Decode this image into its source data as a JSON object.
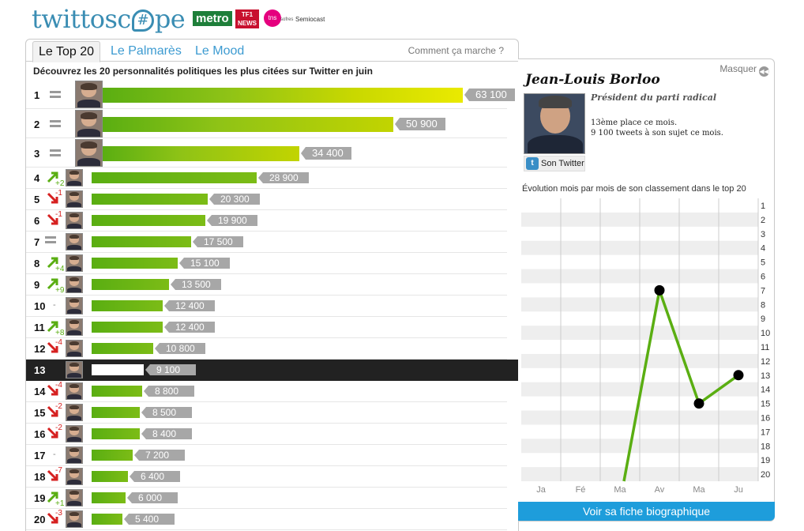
{
  "header": {
    "logo_prefix": "twittosc",
    "logo_hash": "#",
    "logo_suffix": "pe",
    "partners": {
      "metro": "metro",
      "tf1": "TF1",
      "tf1_sub": "NEWS",
      "tns": "tns",
      "tns_sub": "sofres",
      "semiocast": "Semiocast"
    }
  },
  "tabs": [
    {
      "label": "Le Top 20",
      "active": true
    },
    {
      "label": "Le Palmarès",
      "active": false
    },
    {
      "label": "Le Mood",
      "active": false
    }
  ],
  "how_link": "Comment ça marche ?",
  "subtitle": "Découvrez les 20 personnalités politiques les plus citées sur Twitter en juin",
  "colors": {
    "accent": "#3d9bd1",
    "bar": "#6ab414",
    "up": "#5aae12",
    "down": "#d62020",
    "selected_row": "#222222",
    "bio_button": "#1e9ddb"
  },
  "ranking": [
    {
      "rank": "1",
      "trend": "same",
      "delta": "",
      "value": 63100,
      "label": "63 100"
    },
    {
      "rank": "2",
      "trend": "same",
      "delta": "",
      "value": 50900,
      "label": "50 900"
    },
    {
      "rank": "3",
      "trend": "same",
      "delta": "",
      "value": 34400,
      "label": "34 400"
    },
    {
      "rank": "4",
      "trend": "up",
      "delta": "+2",
      "value": 28900,
      "label": "28 900"
    },
    {
      "rank": "5",
      "trend": "down",
      "delta": "-1",
      "value": 20300,
      "label": "20 300"
    },
    {
      "rank": "6",
      "trend": "down",
      "delta": "-1",
      "value": 19900,
      "label": "19 900"
    },
    {
      "rank": "7",
      "trend": "same",
      "delta": "",
      "value": 17500,
      "label": "17 500"
    },
    {
      "rank": "8",
      "trend": "up",
      "delta": "+4",
      "value": 15100,
      "label": "15 100"
    },
    {
      "rank": "9",
      "trend": "up",
      "delta": "+9",
      "value": 13500,
      "label": "13 500"
    },
    {
      "rank": "10",
      "trend": "new",
      "delta": "-",
      "value": 12400,
      "label": "12 400"
    },
    {
      "rank": "11",
      "trend": "up",
      "delta": "+8",
      "value": 12400,
      "label": "12 400"
    },
    {
      "rank": "12",
      "trend": "down",
      "delta": "-4",
      "value": 10800,
      "label": "10 800"
    },
    {
      "rank": "13",
      "trend": "selected",
      "delta": "",
      "value": 9100,
      "label": "9 100"
    },
    {
      "rank": "14",
      "trend": "down",
      "delta": "-4",
      "value": 8800,
      "label": "8 800"
    },
    {
      "rank": "15",
      "trend": "down",
      "delta": "-2",
      "value": 8500,
      "label": "8 500"
    },
    {
      "rank": "16",
      "trend": "down",
      "delta": "-2",
      "value": 8400,
      "label": "8 400"
    },
    {
      "rank": "17",
      "trend": "new",
      "delta": "-",
      "value": 7200,
      "label": "7 200"
    },
    {
      "rank": "18",
      "trend": "down",
      "delta": "-7",
      "value": 6400,
      "label": "6 400"
    },
    {
      "rank": "19",
      "trend": "up",
      "delta": "+1",
      "value": 6000,
      "label": "6 000"
    },
    {
      "rank": "20",
      "trend": "down",
      "delta": "-3",
      "value": 5400,
      "label": "5 400"
    }
  ],
  "detail": {
    "hide_label": "Masquer",
    "name": "Jean-Louis Borloo",
    "role": "Président du parti radical",
    "rank_text": "13ème place ce mois.",
    "tweets_text": "9 100 tweets à son sujet ce mois.",
    "twitter_label": "Son Twitter",
    "evolution_title": "Évolution mois par mois de son classement dans le top 20",
    "bio_button": "Voir sa fiche biographique"
  },
  "chart_data": {
    "type": "line",
    "categories": [
      "Ja",
      "Fé",
      "Ma",
      "Av",
      "Ma",
      "Ju"
    ],
    "y_ticks": [
      "1",
      "2",
      "3",
      "4",
      "5",
      "6",
      "7",
      "8",
      "9",
      "10",
      "11",
      "12",
      "13",
      "14",
      "15",
      "16",
      "17",
      "18",
      "19",
      "20"
    ],
    "ylim": [
      1,
      20
    ],
    "y_inverted": true,
    "values": [
      null,
      null,
      20,
      7,
      15,
      13
    ],
    "markers": [
      false,
      false,
      false,
      true,
      true,
      true
    ],
    "line_color": "#5aae12",
    "marker_color": "#000000",
    "grid": true
  }
}
